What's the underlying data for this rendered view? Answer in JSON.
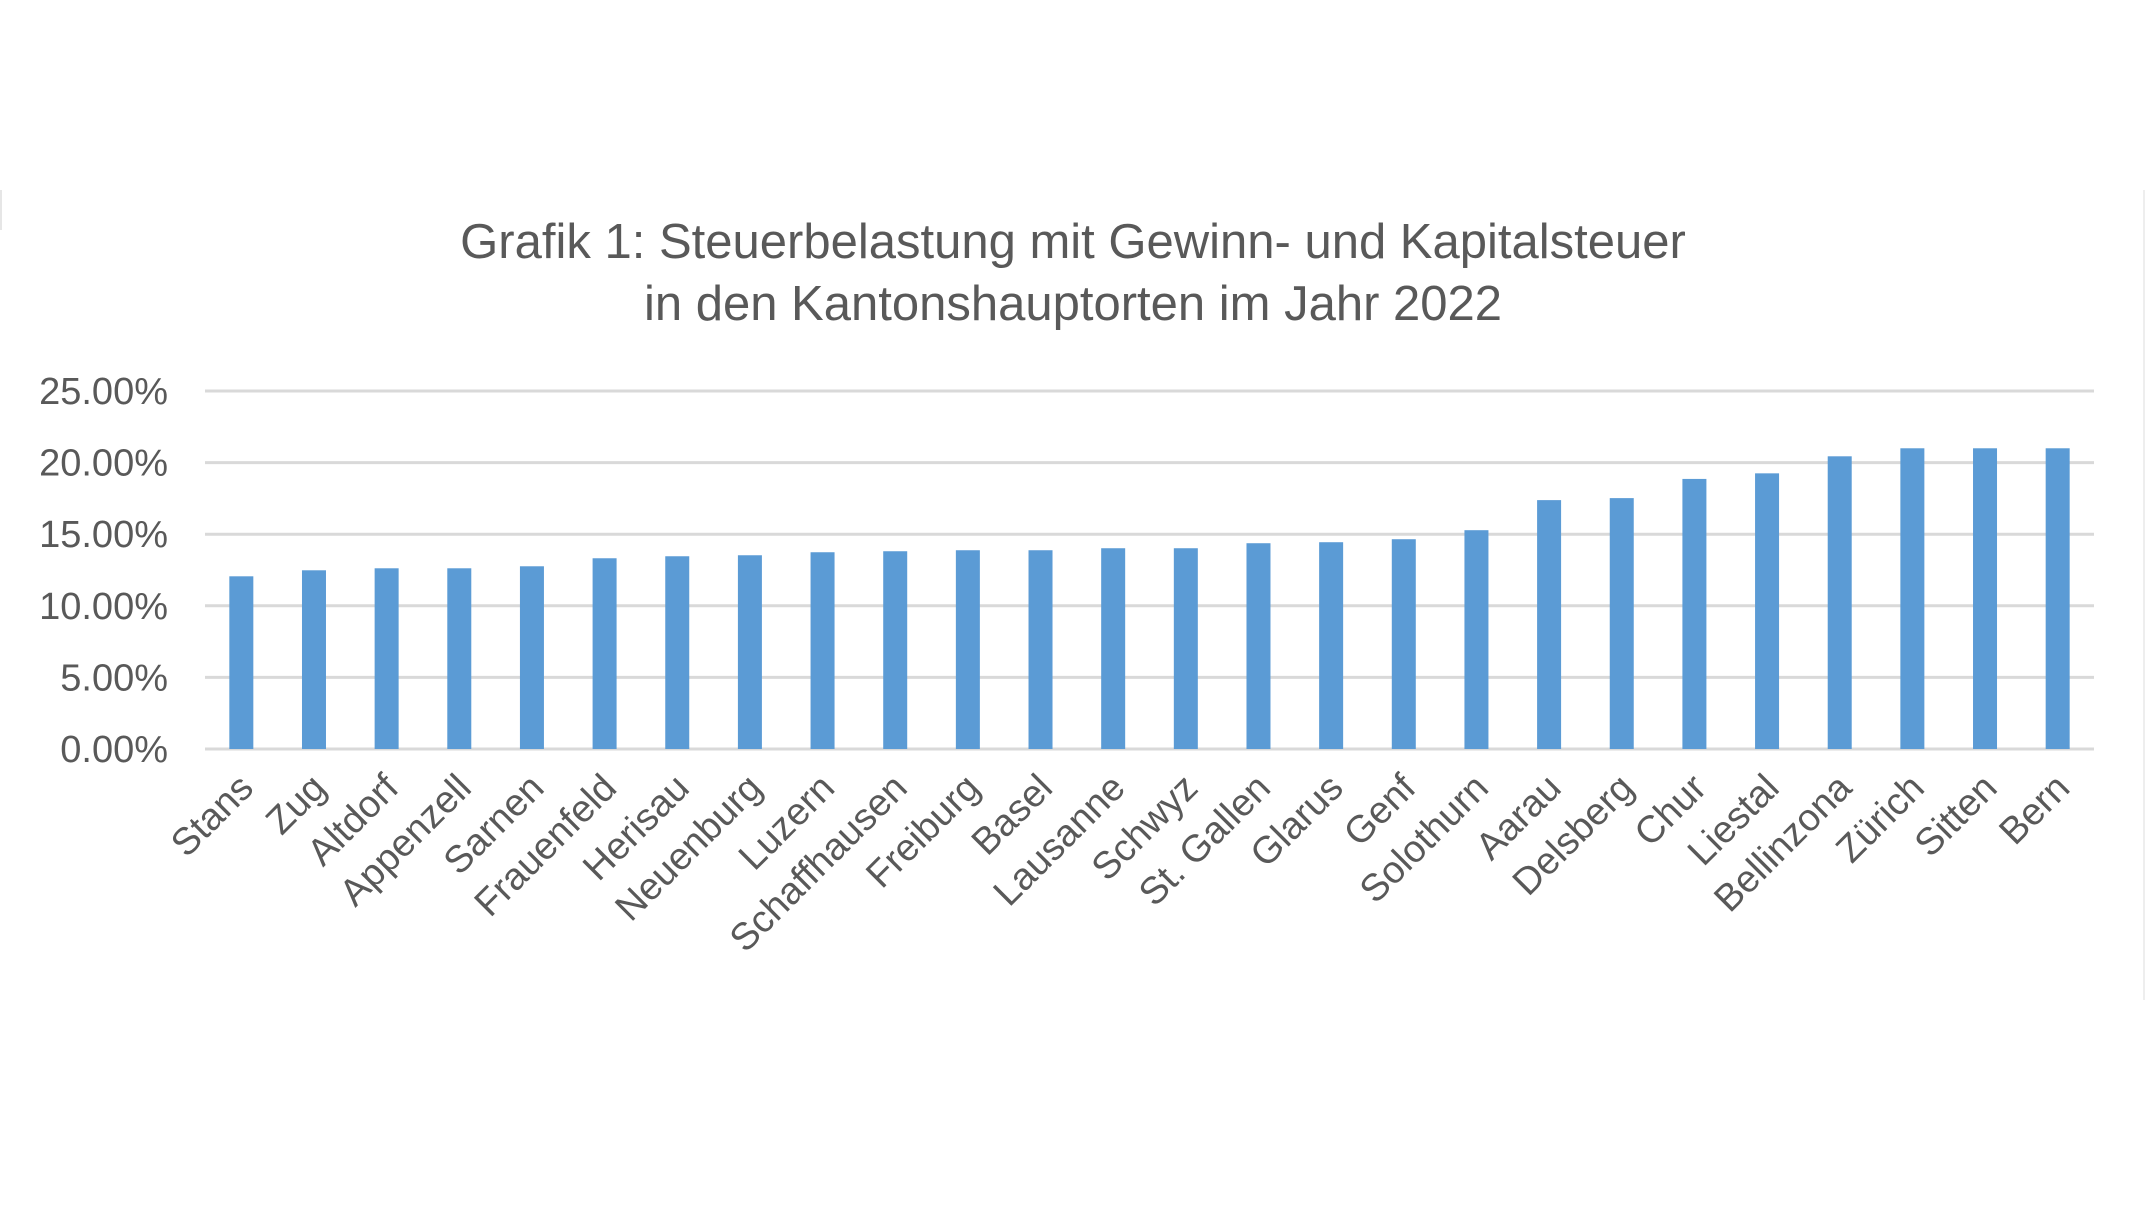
{
  "chart_data": {
    "type": "bar",
    "title": [
      "Grafik 1: Steuerbelastung mit Gewinn- und Kapitalsteuer",
      "in den Kantonshauptorten im Jahr 2022"
    ],
    "categories": [
      "Stans",
      "Zug",
      "Altdorf",
      "Appenzell",
      "Sarnen",
      "Frauenfeld",
      "Herisau",
      "Neuenburg",
      "Luzern",
      "Schaffhausen",
      "Freiburg",
      "Basel",
      "Lausanne",
      "Schwyz",
      "St. Gallen",
      "Glarus",
      "Genf",
      "Solothurn",
      "Aarau",
      "Delsberg",
      "Chur",
      "Liestal",
      "Bellinzona",
      "Zürich",
      "Sitten",
      "Bern"
    ],
    "values": [
      12.06,
      12.48,
      12.62,
      12.62,
      12.76,
      13.32,
      13.46,
      13.53,
      13.74,
      13.81,
      13.88,
      13.88,
      14.02,
      14.02,
      14.37,
      14.44,
      14.65,
      15.28,
      17.38,
      17.52,
      18.86,
      19.25,
      20.44,
      21.0,
      21.0,
      21.0
    ],
    "unit": "%",
    "ylim": [
      0,
      25
    ],
    "yticks": [
      "0.00%",
      "5.00%",
      "10.00%",
      "15.00%",
      "20.00%",
      "25.00%"
    ],
    "xlabel": "",
    "ylabel": "",
    "grid": true,
    "legend": "none",
    "bar_color": "#5B9BD5",
    "grid_color": "#D9D9D9"
  }
}
